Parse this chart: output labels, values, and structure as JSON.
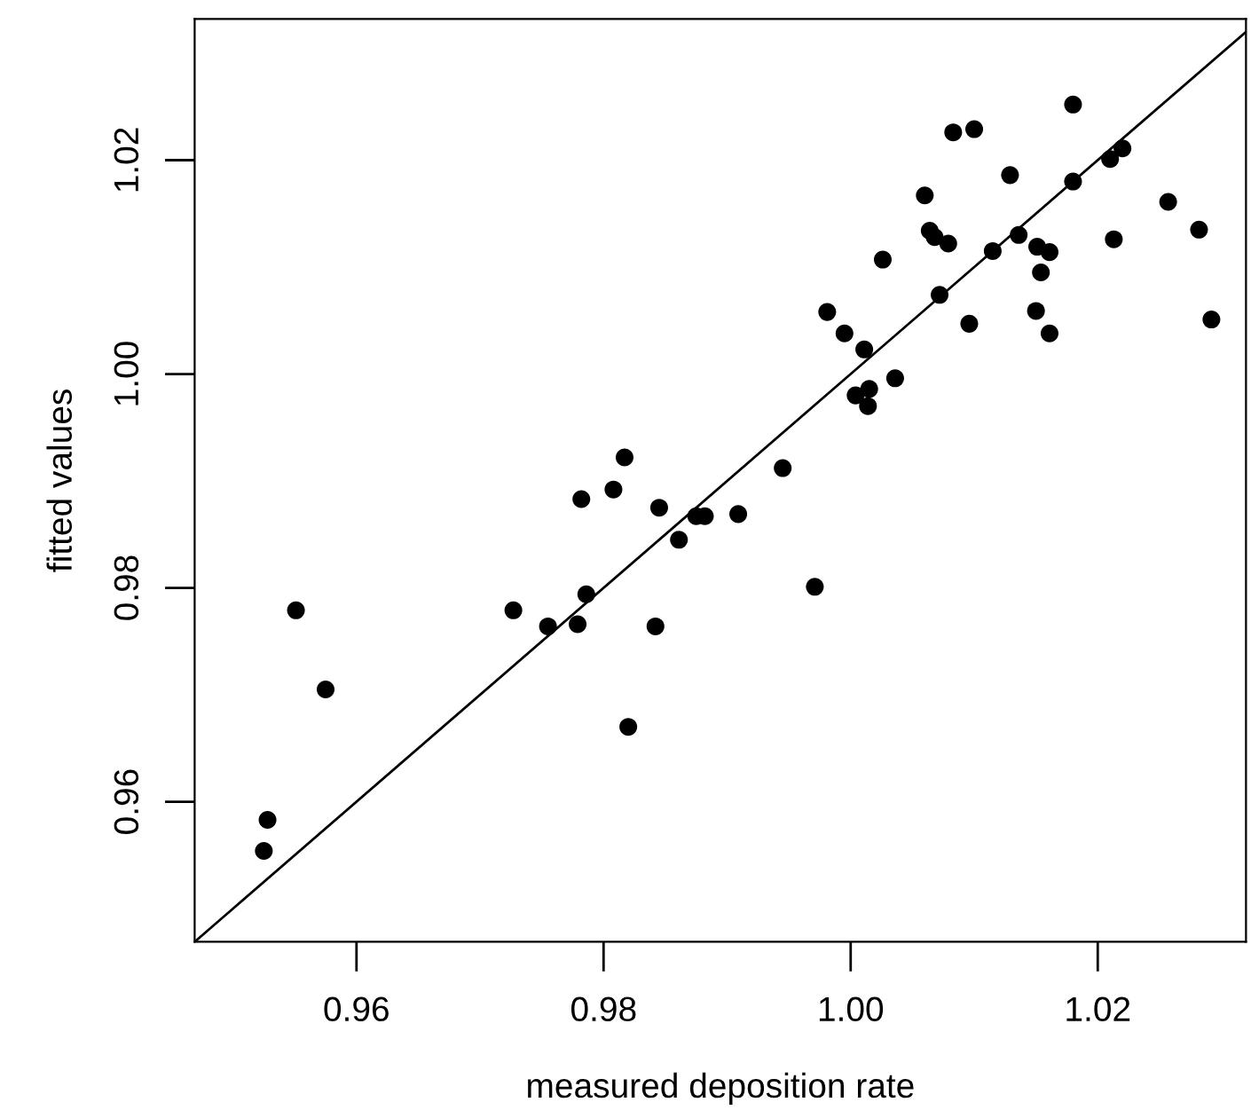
{
  "chart_data": {
    "type": "scatter",
    "xlabel": "measured deposition rate",
    "ylabel": "fitted values",
    "xlim": [
      0.9469,
      1.032
    ],
    "ylim": [
      0.9469,
      1.0332
    ],
    "xticks": [
      {
        "value": 0.96,
        "label": "0.96"
      },
      {
        "value": 0.98,
        "label": "0.98"
      },
      {
        "value": 1.0,
        "label": "1.00"
      },
      {
        "value": 1.02,
        "label": "1.02"
      }
    ],
    "yticks": [
      {
        "value": 0.96,
        "label": "0.96"
      },
      {
        "value": 0.98,
        "label": "0.98"
      },
      {
        "value": 1.0,
        "label": "1.00"
      },
      {
        "value": 1.02,
        "label": "1.02"
      }
    ],
    "grid": false,
    "legend": false,
    "marker": "circle",
    "series": [
      {
        "color": "#000000",
        "x": [
          0.9525,
          0.9528,
          0.9551,
          0.9575,
          0.9727,
          0.9755,
          0.9779,
          0.9786,
          0.982,
          0.9842,
          0.9861,
          0.9817,
          0.9782,
          0.9808,
          0.9845,
          0.9875,
          0.9882,
          0.9909,
          0.9945,
          0.9981,
          0.9995,
          1.0011,
          1.0004,
          1.0015,
          1.0014,
          1.0036,
          1.0026,
          1.006,
          1.0064,
          1.0068,
          1.0079,
          1.0072,
          1.0096,
          1.0083,
          1.01,
          1.0113,
          1.0115,
          1.0129,
          1.0136,
          1.0151,
          1.0161,
          1.0154,
          1.015,
          1.0161,
          1.018,
          1.018,
          1.021,
          1.022,
          1.0213,
          1.0257,
          1.0282,
          1.0292,
          0.9971
        ],
        "values": [
          0.9554,
          0.9583,
          0.9779,
          0.9705,
          0.9779,
          0.9764,
          0.9766,
          0.9794,
          0.967,
          0.9764,
          0.9845,
          0.9922,
          0.9883,
          0.9892,
          0.9875,
          0.9867,
          0.9867,
          0.9869,
          0.9912,
          1.0058,
          1.0038,
          1.0023,
          0.998,
          0.9986,
          0.997,
          0.9996,
          1.0107,
          1.0167,
          1.0134,
          1.0128,
          1.0122,
          1.0074,
          1.0047,
          1.0226,
          1.0229,
          null,
          1.0115,
          1.0186,
          1.013,
          1.0119,
          1.0114,
          1.0095,
          1.0059,
          1.0038,
          1.0252,
          1.018,
          1.0201,
          1.0211,
          1.0126,
          1.0161,
          1.0135,
          1.0051,
          0.9801
        ]
      },
      {
        "type": "line",
        "color": "#000000",
        "marker": "none",
        "line_style": "solid",
        "x": [
          0.9469,
          1.032
        ],
        "values": [
          0.9469,
          1.032
        ]
      }
    ]
  }
}
